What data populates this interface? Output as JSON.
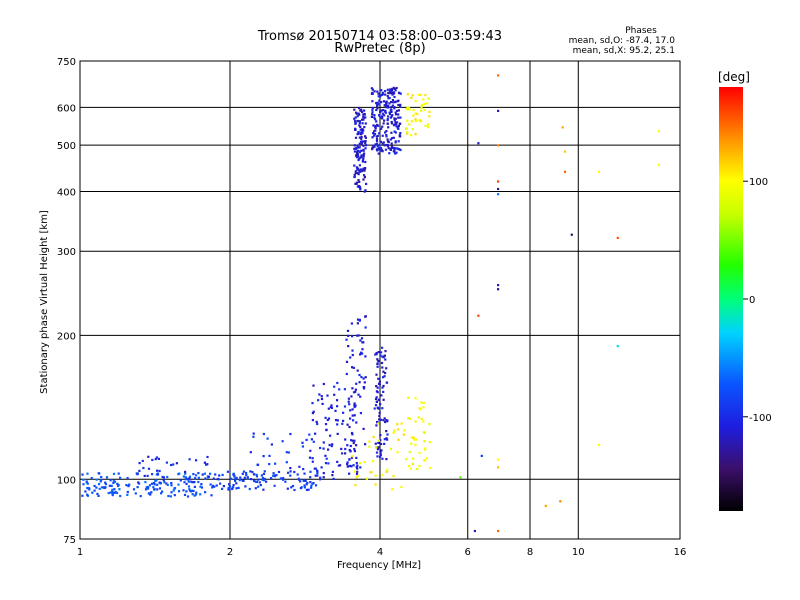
{
  "chart_data": {
    "type": "scatter",
    "title": "Tromsø 20150714 03:58:00–03:59:43",
    "subtitle": "RwPretec (8p)",
    "xlabel": "Frequency [MHz]",
    "ylabel": "Stationary phase Virtual Height [km]",
    "x_scale": "log2",
    "y_scale": "log",
    "xlim": [
      1,
      16
    ],
    "ylim": [
      75,
      750
    ],
    "grid": true,
    "x_ticks": [
      {
        "value": 1,
        "label": "1"
      },
      {
        "value": 2,
        "label": "2"
      },
      {
        "value": 4,
        "label": "4"
      },
      {
        "value": 6,
        "label": "6"
      },
      {
        "value": 8,
        "label": "8"
      },
      {
        "value": 10,
        "label": "10"
      },
      {
        "value": 16,
        "label": "16"
      }
    ],
    "y_ticks": [
      {
        "value": 75,
        "label": "75"
      },
      {
        "value": 100,
        "label": "100"
      },
      {
        "value": 200,
        "label": "200"
      },
      {
        "value": 300,
        "label": "300"
      },
      {
        "value": 400,
        "label": "400"
      },
      {
        "value": 500,
        "label": "500"
      },
      {
        "value": 600,
        "label": "600"
      },
      {
        "value": 750,
        "label": "750"
      }
    ],
    "stats": {
      "heading": "Phases",
      "line_o": "mean, sd,O: -87.4, 17.0",
      "line_x": "mean, sd,X:  95.2, 25.1"
    },
    "colorbar": {
      "label": "[deg]",
      "range": [
        -180,
        180
      ],
      "ticks": [
        {
          "value": 100,
          "label": "100"
        },
        {
          "value": 0,
          "label": "0"
        },
        {
          "value": -100,
          "label": "-100"
        }
      ]
    },
    "point_groups": [
      {
        "f_min": 1.0,
        "f_max": 1.85,
        "h_min": 92,
        "h_max": 103,
        "phase": -75,
        "count": 170
      },
      {
        "f_min": 1.3,
        "f_max": 1.85,
        "h_min": 98,
        "h_max": 112,
        "phase": -100,
        "count": 35
      },
      {
        "f_min": 1.85,
        "f_max": 3.0,
        "h_min": 95,
        "h_max": 104,
        "phase": -85,
        "count": 120
      },
      {
        "f_min": 2.2,
        "f_max": 3.2,
        "h_min": 104,
        "h_max": 125,
        "phase": -95,
        "count": 35
      },
      {
        "f_min": 2.9,
        "f_max": 3.6,
        "h_min": 100,
        "h_max": 160,
        "phase": -105,
        "count": 90
      },
      {
        "f_min": 3.4,
        "f_max": 3.75,
        "h_min": 105,
        "h_max": 220,
        "phase": -110,
        "count": 80
      },
      {
        "f_min": 3.9,
        "f_max": 4.15,
        "h_min": 110,
        "h_max": 190,
        "phase": -110,
        "count": 90
      },
      {
        "f_min": 3.5,
        "f_max": 4.5,
        "h_min": 95,
        "h_max": 135,
        "phase": 100,
        "count": 35
      },
      {
        "f_min": 4.5,
        "f_max": 5.05,
        "h_min": 105,
        "h_max": 150,
        "phase": 95,
        "count": 40
      },
      {
        "f_min": 3.55,
        "f_max": 3.75,
        "h_min": 400,
        "h_max": 600,
        "phase": -115,
        "count": 140
      },
      {
        "f_min": 3.85,
        "f_max": 4.4,
        "h_min": 480,
        "h_max": 660,
        "phase": -112,
        "count": 230
      },
      {
        "f_min": 4.5,
        "f_max": 5.05,
        "h_min": 520,
        "h_max": 640,
        "phase": 100,
        "count": 45
      }
    ],
    "extra_points": [
      {
        "f": 6.3,
        "h": 505,
        "phase": -110
      },
      {
        "f": 6.3,
        "h": 220,
        "phase": 160
      },
      {
        "f": 6.4,
        "h": 112,
        "phase": -90
      },
      {
        "f": 6.9,
        "h": 700,
        "phase": 150
      },
      {
        "f": 6.9,
        "h": 590,
        "phase": -120
      },
      {
        "f": 6.9,
        "h": 500,
        "phase": 140
      },
      {
        "f": 6.9,
        "h": 420,
        "phase": 160
      },
      {
        "f": 6.9,
        "h": 405,
        "phase": -130
      },
      {
        "f": 6.9,
        "h": 395,
        "phase": -60
      },
      {
        "f": 6.9,
        "h": 255,
        "phase": -120
      },
      {
        "f": 6.9,
        "h": 250,
        "phase": -130
      },
      {
        "f": 6.9,
        "h": 110,
        "phase": 100
      },
      {
        "f": 6.9,
        "h": 106,
        "phase": 120
      },
      {
        "f": 6.9,
        "h": 78,
        "phase": 150
      },
      {
        "f": 6.2,
        "h": 78,
        "phase": -120
      },
      {
        "f": 5.8,
        "h": 101,
        "phase": 40
      },
      {
        "f": 9.3,
        "h": 545,
        "phase": 130
      },
      {
        "f": 9.4,
        "h": 485,
        "phase": 120
      },
      {
        "f": 9.4,
        "h": 440,
        "phase": 150
      },
      {
        "f": 9.7,
        "h": 325,
        "phase": -150
      },
      {
        "f": 8.6,
        "h": 88,
        "phase": 130
      },
      {
        "f": 9.2,
        "h": 90,
        "phase": 140
      },
      {
        "f": 11.0,
        "h": 440,
        "phase": 100
      },
      {
        "f": 12.0,
        "h": 320,
        "phase": 155
      },
      {
        "f": 12.0,
        "h": 190,
        "phase": -20
      },
      {
        "f": 11.0,
        "h": 118,
        "phase": 100
      },
      {
        "f": 14.5,
        "h": 535,
        "phase": 100
      },
      {
        "f": 14.5,
        "h": 455,
        "phase": 100
      }
    ]
  }
}
